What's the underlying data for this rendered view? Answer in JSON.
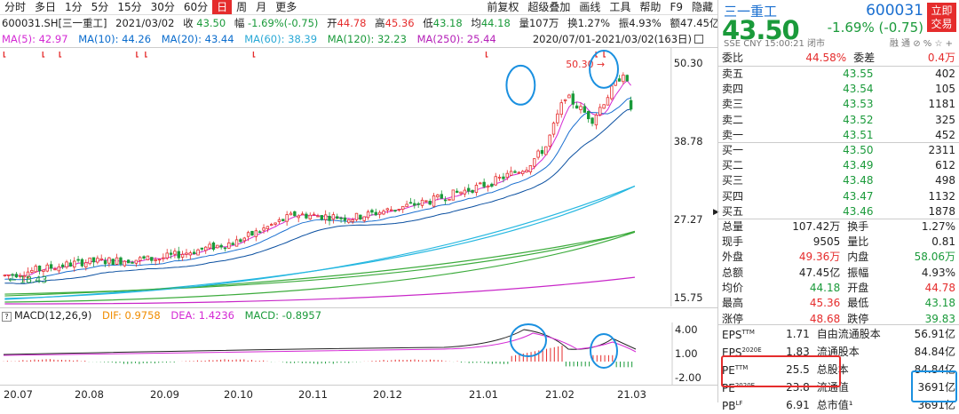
{
  "toolbar": {
    "left": [
      "分时",
      "多日",
      "1分",
      "5分",
      "15分",
      "30分",
      "60分",
      "日",
      "周",
      "月",
      "更多"
    ],
    "active": "日",
    "right": [
      "前复权",
      "超级叠加",
      "画线",
      "工具",
      "帮助",
      "F9",
      "隐藏"
    ]
  },
  "info": {
    "code": "600031.SH[三一重工]",
    "date": "2021/03/02",
    "close_label": "收",
    "close": "43.50",
    "change_label": "幅",
    "change": "-1.69%(-0.75)",
    "open_label": "开",
    "open": "44.78",
    "high_label": "高",
    "high": "45.36",
    "low_label": "低",
    "low": "43.18",
    "avg_label": "均",
    "avg": "44.18",
    "vol_label": "量",
    "vol": "107万",
    "turn_label": "换",
    "turn": "1.27%",
    "amp_label": "振",
    "amp": "4.93%",
    "amt_label": "额",
    "amt": "47.45亿"
  },
  "ma": {
    "ma5": "MA(5): 42.97",
    "ma10": "MA(10): 44.26",
    "ma20": "MA(20): 43.44",
    "ma60": "MA(60): 38.39",
    "ma120": "MA(120): 32.23",
    "ma250": "MA(250): 25.44",
    "range": "2020/07/01-2021/03/02(163日)"
  },
  "price_axis": [
    "50.30",
    "38.78",
    "27.27",
    "15.75"
  ],
  "annotations": {
    "low": "18.43",
    "high": "50.30"
  },
  "macd": {
    "label": "MACD(12,26,9)",
    "dif": "DIF: 0.9758",
    "dea": "DEA: 1.4236",
    "macd": "MACD: -0.8957",
    "axis": [
      "4.00",
      "1.00",
      "-2.00"
    ]
  },
  "xaxis": [
    "20.07",
    "20.08",
    "20.09",
    "20.10",
    "20.11",
    "20.12",
    "21.01",
    "21.02",
    "21.03"
  ],
  "quote": {
    "name": "三一重工",
    "code": "600031",
    "button": "立即交易",
    "price": "43.50",
    "change": "-1.69% (-0.75)",
    "meta": "SSE  CNY  15:00:21  闭市",
    "meta_icons": "融 通 ⊘ % ☆ +",
    "wb": [
      [
        "委比",
        "44.58%",
        "委差",
        "0.4万"
      ]
    ],
    "asks": [
      [
        "卖五",
        "43.55",
        "402"
      ],
      [
        "卖四",
        "43.54",
        "105"
      ],
      [
        "卖三",
        "43.53",
        "1181"
      ],
      [
        "卖二",
        "43.52",
        "325"
      ],
      [
        "卖一",
        "43.51",
        "452"
      ]
    ],
    "bids": [
      [
        "买一",
        "43.50",
        "2311"
      ],
      [
        "买二",
        "43.49",
        "612"
      ],
      [
        "买三",
        "43.48",
        "498"
      ],
      [
        "买四",
        "43.47",
        "1132"
      ],
      [
        "买五",
        "43.46",
        "1878"
      ]
    ],
    "stats": [
      [
        "总量",
        "107.42万",
        "换手",
        "1.27%"
      ],
      [
        "现手",
        "9505",
        "量比",
        "0.81"
      ],
      [
        "外盘",
        "49.36万",
        "内盘",
        "58.06万"
      ],
      [
        "总额",
        "47.45亿",
        "振幅",
        "4.93%"
      ],
      [
        "均价",
        "44.18",
        "开盘",
        "44.78"
      ],
      [
        "最高",
        "45.36",
        "最低",
        "43.18"
      ],
      [
        "涨停",
        "48.68",
        "跌停",
        "39.83"
      ]
    ],
    "fund": [
      [
        "EPS",
        "TTM",
        "1.71",
        "自由流通股本",
        "56.91亿"
      ],
      [
        "EPS",
        "2020E",
        "1.83",
        "流通股本",
        "84.84亿"
      ],
      [
        "PE",
        "TTM",
        "25.5",
        "总股本",
        "84.84亿"
      ],
      [
        "PE",
        "2020E",
        "23.8",
        "流通值",
        "3691亿"
      ],
      [
        "PB",
        "LF",
        "6.91",
        "总市值¹",
        "3691亿"
      ]
    ]
  }
}
